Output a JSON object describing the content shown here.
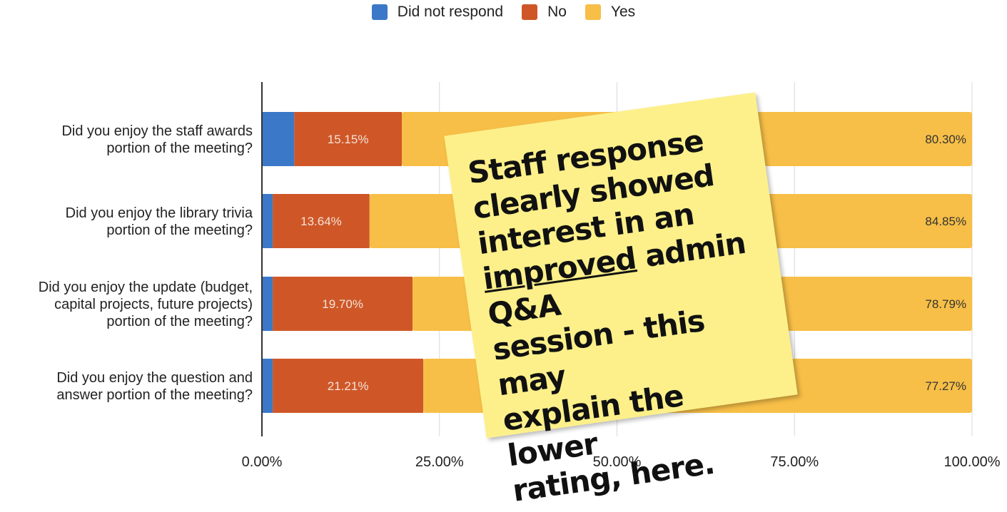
{
  "chart_data": {
    "type": "bar",
    "orientation": "horizontal",
    "stacked": true,
    "categories": [
      "Did you enjoy the staff awards portion of the meeting?",
      "Did you enjoy the library trivia portion of the meeting?",
      "Did you enjoy the update (budget, capital projects, future projects) portion of the meeting?",
      "Did you enjoy the question and answer portion of the meeting?"
    ],
    "category_lines": [
      [
        "Did you enjoy the staff awards",
        "portion of the meeting?"
      ],
      [
        "Did you enjoy the library trivia",
        "portion of the meeting?"
      ],
      [
        "Did you enjoy the update (budget,",
        "capital projects, future projects)",
        "portion of the meeting?"
      ],
      [
        "Did you enjoy the question and",
        "answer portion of the meeting?"
      ]
    ],
    "series": [
      {
        "name": "Did not respond",
        "color": "#3b78c7",
        "values": [
          4.55,
          1.52,
          1.52,
          1.52
        ]
      },
      {
        "name": "No",
        "color": "#cf5727",
        "values": [
          15.15,
          13.64,
          19.7,
          21.21
        ],
        "labels": [
          "15.15%",
          "13.64%",
          "19.70%",
          "21.21%"
        ]
      },
      {
        "name": "Yes",
        "color": "#f7bf47",
        "values": [
          80.3,
          84.85,
          78.79,
          77.27
        ],
        "labels": [
          "80.30%",
          "84.85%",
          "78.79%",
          "77.27%"
        ]
      }
    ],
    "xlim": [
      0,
      100
    ],
    "xticks": [
      "0.00%",
      "25.00%",
      "50.00%",
      "75.00%",
      "100.00%"
    ],
    "grid": true,
    "legend": "top-center"
  },
  "note": {
    "line1": "Staff response",
    "line2": "clearly showed",
    "line3": "interest in an",
    "underlined_word": "improved",
    "line4_rest": " admin Q&A",
    "line5": "session - this may",
    "line6": "explain the lower",
    "line7": "rating, here."
  }
}
